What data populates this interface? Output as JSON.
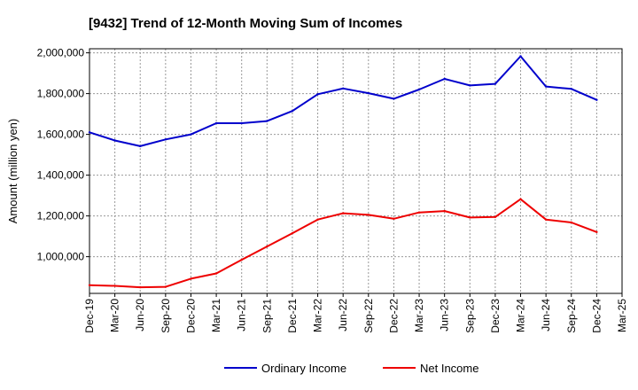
{
  "chart_data": {
    "type": "line",
    "title": "[9432]  Trend of 12-Month Moving Sum of Incomes",
    "xlabel": "",
    "ylabel": "Amount (million yen)",
    "ylim": [
      820000,
      2020000
    ],
    "yticks": [
      1000000,
      1200000,
      1400000,
      1600000,
      1800000,
      2000000
    ],
    "ytick_labels": [
      "1,000,000",
      "1,200,000",
      "1,400,000",
      "1,600,000",
      "1,800,000",
      "2,000,000"
    ],
    "categories": [
      "Dec-19",
      "Mar-20",
      "Jun-20",
      "Sep-20",
      "Dec-20",
      "Mar-21",
      "Jun-21",
      "Sep-21",
      "Dec-21",
      "Mar-22",
      "Jun-22",
      "Sep-22",
      "Dec-22",
      "Mar-23",
      "Jun-23",
      "Sep-23",
      "Dec-23",
      "Mar-24",
      "Jun-24",
      "Sep-24",
      "Dec-24",
      "Mar-25"
    ],
    "grid": true,
    "legend_position": "bottom-center",
    "series": [
      {
        "name": "Ordinary Income",
        "color": "#0000cc",
        "values": [
          1610000,
          1570000,
          1542000,
          1575000,
          1600000,
          1655000,
          1655000,
          1665000,
          1715000,
          1797000,
          1825000,
          1802000,
          1775000,
          1820000,
          1872000,
          1840000,
          1848000,
          1983000,
          1835000,
          1823000,
          1769000,
          null
        ]
      },
      {
        "name": "Net Income",
        "color": "#ee0000",
        "values": [
          860000,
          857000,
          850000,
          852000,
          892000,
          918000,
          985000,
          1050000,
          1115000,
          1182000,
          1213000,
          1205000,
          1186000,
          1217000,
          1224000,
          1192000,
          1195000,
          1282000,
          1182000,
          1168000,
          1121000,
          null
        ]
      }
    ]
  }
}
